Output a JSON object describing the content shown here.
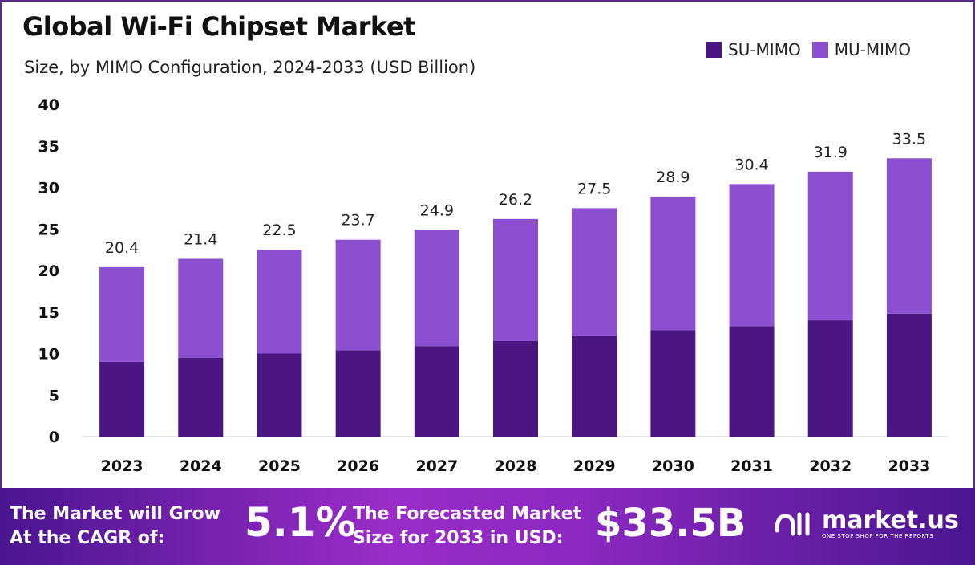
{
  "chart_data": {
    "type": "bar",
    "stacked": true,
    "title": "Global Wi-Fi Chipset Market",
    "subtitle": "Size, by MIMO Configuration, 2024-2033 (USD Billion)",
    "categories": [
      "2023",
      "2024",
      "2025",
      "2026",
      "2027",
      "2028",
      "2029",
      "2030",
      "2031",
      "2032",
      "2033"
    ],
    "series": [
      {
        "name": "SU-MIMO",
        "color": "#4b1582",
        "values": [
          9.0,
          9.5,
          10.0,
          10.4,
          10.9,
          11.5,
          12.1,
          12.8,
          13.3,
          14.0,
          14.8
        ]
      },
      {
        "name": "MU-MIMO",
        "color": "#8c4fd2",
        "values": [
          11.4,
          11.9,
          12.5,
          13.3,
          14.0,
          14.7,
          15.4,
          16.1,
          17.1,
          17.9,
          18.7
        ]
      }
    ],
    "totals": [
      "20.4",
      "21.4",
      "22.5",
      "23.7",
      "24.9",
      "26.2",
      "27.5",
      "28.9",
      "30.4",
      "31.9",
      "33.5"
    ],
    "ylim": [
      0,
      40
    ],
    "yticks": [
      "0",
      "5",
      "10",
      "15",
      "20",
      "25",
      "30",
      "35",
      "40"
    ],
    "grid": false,
    "legend_position": "top-right"
  },
  "banner": {
    "cagr_label_line1": "The Market will Grow",
    "cagr_label_line2": "At the CAGR of:",
    "cagr_value": "5.1%",
    "forecast_label_line1": "The Forecasted Market",
    "forecast_label_line2": "Size for 2033 in USD:",
    "forecast_value": "$33.5B",
    "logo_name": "market.us",
    "logo_tagline": "ONE STOP SHOP FOR THE REPORTS"
  }
}
